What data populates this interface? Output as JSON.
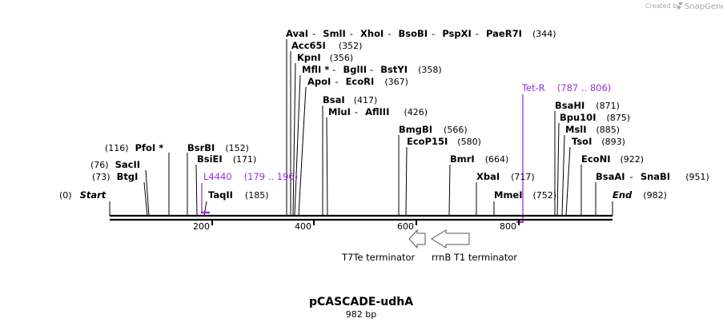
{
  "watermark": {
    "created_by": "Created by",
    "brand": "SnapGene"
  },
  "plasmid": {
    "name": "pCASCADE-udhA",
    "length_label": "982 bp"
  },
  "sites": {
    "start": {
      "name": "Start",
      "pos": "(0)"
    },
    "end": {
      "name": "End",
      "pos": "(982)"
    },
    "btgi": {
      "name": "BtgI",
      "pos": "(73)"
    },
    "sacii": {
      "name": "SacII",
      "pos": "(76)"
    },
    "pfoi": {
      "name": "PfoI *",
      "pos": "(116)"
    },
    "bsrbi": {
      "name": "BsrBI",
      "pos": "(152)"
    },
    "bsiei": {
      "name": "BsiEI",
      "pos": "(171)"
    },
    "taqii": {
      "name": "TaqII",
      "pos": "(185)"
    },
    "avai": {
      "names": [
        "AvaI",
        "SmlI",
        "XhoI",
        "BsoBI",
        "PspXI",
        "PaeR7I"
      ],
      "pos": "(344)"
    },
    "acc65i": {
      "name": "Acc65I",
      "pos": "(352)"
    },
    "kpni": {
      "name": "KpnI",
      "pos": "(356)"
    },
    "mfli": {
      "names": [
        "MflI *",
        "BglII",
        "BstYI"
      ],
      "pos": "(358)"
    },
    "apoi": {
      "names": [
        "ApoI",
        "EcoRI"
      ],
      "pos": "(367)"
    },
    "bsai": {
      "name": "BsaI",
      "pos": "(417)"
    },
    "mlui": {
      "names": [
        "MluI",
        "AflIII"
      ],
      "pos": "(426)"
    },
    "bmgbi": {
      "name": "BmgBI",
      "pos": "(566)"
    },
    "ecop15i": {
      "name": "EcoP15I",
      "pos": "(580)"
    },
    "bmri": {
      "name": "BmrI",
      "pos": "(664)"
    },
    "xbai": {
      "name": "XbaI",
      "pos": "(717)"
    },
    "mmei": {
      "name": "MmeI",
      "pos": "(752)"
    },
    "bsahi": {
      "name": "BsaHI",
      "pos": "(871)"
    },
    "bpu10i": {
      "name": "Bpu10I",
      "pos": "(875)"
    },
    "msli": {
      "name": "MslI",
      "pos": "(885)"
    },
    "tsoi": {
      "name": "TsoI",
      "pos": "(893)"
    },
    "econi": {
      "name": "EcoNI",
      "pos": "(922)"
    },
    "bsaai": {
      "names": [
        "BsaAI",
        "SnaBI"
      ],
      "pos": "(951)"
    }
  },
  "primers": {
    "l4440": {
      "name": "L4440",
      "range": "(179 .. 196)"
    },
    "tetr": {
      "name": "Tet-R",
      "range": "(787 .. 806)"
    }
  },
  "ruler": {
    "ticks": [
      "200",
      "400",
      "600",
      "800"
    ]
  },
  "features": {
    "t7te": {
      "label": "T7Te terminator"
    },
    "rrnb": {
      "label": "rrnB T1 terminator"
    }
  },
  "colors": {
    "primer": "#9b30d9",
    "line": "#000000",
    "feature_stroke": "#555555",
    "watermark": "#a6a6a6"
  }
}
